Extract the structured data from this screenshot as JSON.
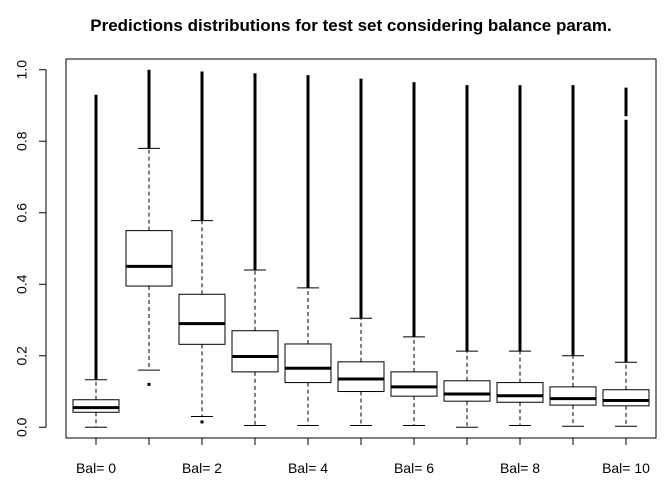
{
  "chart_data": {
    "type": "boxplot",
    "title": "Predictions distributions for test set considering balance param.",
    "xlabel": "",
    "ylabel": "",
    "ylim": [
      -0.03,
      1.03
    ],
    "yticks": [
      "0.0",
      "0.2",
      "0.4",
      "0.6",
      "0.8",
      "1.0"
    ],
    "categories": [
      "Bal= 0",
      "Bal= 1",
      "Bal= 2",
      "Bal= 3",
      "Bal= 4",
      "Bal= 5",
      "Bal= 6",
      "Bal= 7",
      "Bal= 8",
      "Bal= 9",
      "Bal= 10"
    ],
    "x_tick_labels_shown": [
      "Bal= 0",
      "Bal= 2",
      "Bal= 4",
      "Bal= 6",
      "Bal= 8",
      "Bal= 10"
    ],
    "boxes": [
      {
        "category": "Bal= 0",
        "whisker_low": 0.0,
        "q1": 0.042,
        "median": 0.055,
        "q3": 0.077,
        "whisker_high": 0.133,
        "outliers_to": 0.93
      },
      {
        "category": "Bal= 1",
        "whisker_low": 0.16,
        "q1": 0.395,
        "median": 0.45,
        "q3": 0.55,
        "whisker_high": 0.78,
        "outliers_to": 1.0,
        "outliers_below": [
          0.12
        ]
      },
      {
        "category": "Bal= 2",
        "whisker_low": 0.03,
        "q1": 0.232,
        "median": 0.29,
        "q3": 0.372,
        "whisker_high": 0.578,
        "outliers_to": 0.995,
        "outliers_below": [
          0.015
        ]
      },
      {
        "category": "Bal= 3",
        "whisker_low": 0.005,
        "q1": 0.155,
        "median": 0.198,
        "q3": 0.27,
        "whisker_high": 0.44,
        "outliers_to": 0.99
      },
      {
        "category": "Bal= 4",
        "whisker_low": 0.005,
        "q1": 0.125,
        "median": 0.165,
        "q3": 0.233,
        "whisker_high": 0.39,
        "outliers_to": 0.985
      },
      {
        "category": "Bal= 5",
        "whisker_low": 0.005,
        "q1": 0.1,
        "median": 0.135,
        "q3": 0.183,
        "whisker_high": 0.305,
        "outliers_to": 0.975
      },
      {
        "category": "Bal= 6",
        "whisker_low": 0.005,
        "q1": 0.087,
        "median": 0.113,
        "q3": 0.155,
        "whisker_high": 0.253,
        "outliers_to": 0.965
      },
      {
        "category": "Bal= 7",
        "whisker_low": 0.0,
        "q1": 0.073,
        "median": 0.093,
        "q3": 0.13,
        "whisker_high": 0.213,
        "outliers_to": 0.957
      },
      {
        "category": "Bal= 8",
        "whisker_low": 0.005,
        "q1": 0.07,
        "median": 0.088,
        "q3": 0.125,
        "whisker_high": 0.213,
        "outliers_to": 0.957
      },
      {
        "category": "Bal= 9",
        "whisker_low": 0.003,
        "q1": 0.062,
        "median": 0.08,
        "q3": 0.113,
        "whisker_high": 0.2,
        "outliers_to": 0.957
      },
      {
        "category": "Bal= 10",
        "whisker_low": 0.003,
        "q1": 0.06,
        "median": 0.075,
        "q3": 0.105,
        "whisker_high": 0.182,
        "outliers_to": 0.95,
        "gap": [
          0.86,
          0.87
        ]
      }
    ],
    "grid": false,
    "legend": "none"
  }
}
